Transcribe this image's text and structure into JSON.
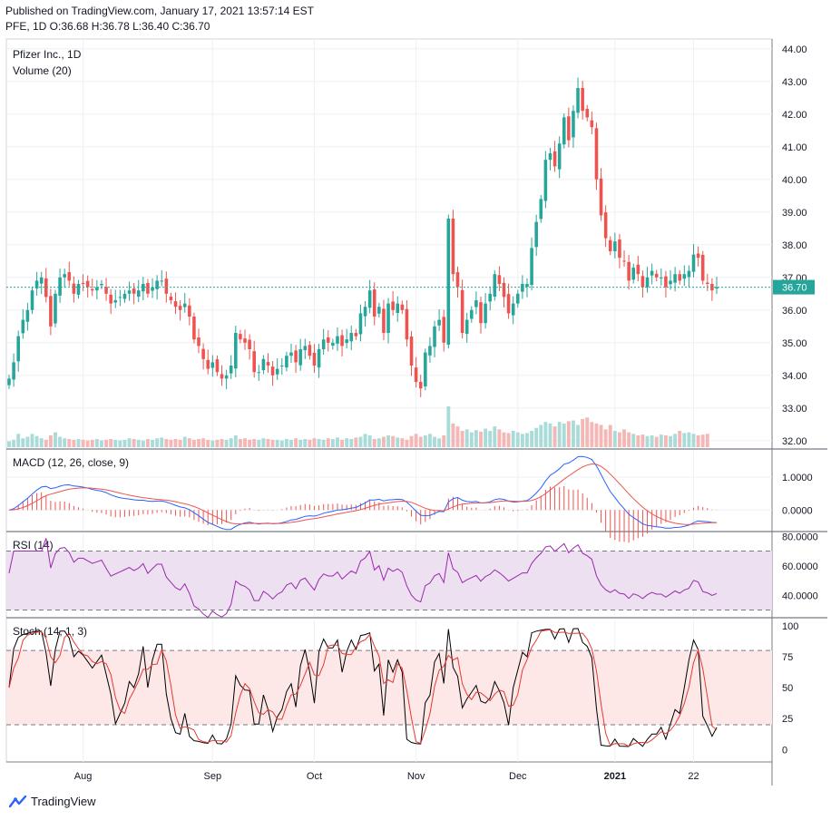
{
  "header": {
    "published": "Published on TradingView.com, January 17, 2021 13:57:14 EST",
    "ohlc": "PFE, 1D  O:36.68  H:36.78  L:36.40  C:36.70"
  },
  "footer": {
    "brand": "TradingView",
    "logo_icon": "tradingview-logo-icon"
  },
  "colors": {
    "up": "#26a69a",
    "down": "#ef5350",
    "vol_up": "#a9dcd8",
    "vol_down": "#f5b7b5",
    "macd_line": "#2962ff",
    "signal_line": "#ef5350",
    "rsi_line": "#9c27b0",
    "rsi_band": "#ede0f0",
    "stoch_k": "#000000",
    "stoch_d": "#e53935",
    "stoch_band": "#fde7e7",
    "last_price_bg": "#26a69a",
    "grid": "#eef0f3"
  },
  "chart_data": [
    {
      "type": "candlestick",
      "title": "Pfizer Inc., 1D",
      "subtitle": "Volume (20)",
      "last_price": 36.7,
      "last_price_label": "36.70",
      "ylim": [
        31.8,
        44.3
      ],
      "y_ticks": [
        "44.00",
        "43.00",
        "42.00",
        "41.00",
        "40.00",
        "39.00",
        "38.00",
        "37.00",
        "36.00",
        "35.00",
        "34.00",
        "33.00",
        "32.00"
      ],
      "x_ticks": [
        "Aug",
        "Sep",
        "Oct",
        "Nov",
        "Dec",
        "2021",
        "22"
      ],
      "closes": [
        33.9,
        34.4,
        35.2,
        35.7,
        36.0,
        36.6,
        36.9,
        37.0,
        36.4,
        35.5,
        36.5,
        37.0,
        37.1,
        36.9,
        36.5,
        36.8,
        36.8,
        36.7,
        36.6,
        36.7,
        36.8,
        36.5,
        36.2,
        36.3,
        36.4,
        36.5,
        36.6,
        36.5,
        36.6,
        36.8,
        36.5,
        36.7,
        36.9,
        36.9,
        36.5,
        36.3,
        36.1,
        36.0,
        36.2,
        35.8,
        35.1,
        34.9,
        34.5,
        34.2,
        34.4,
        34.1,
        33.9,
        34.0,
        34.3,
        35.3,
        35.1,
        35.0,
        34.8,
        34.1,
        34.1,
        34.5,
        34.3,
        34.0,
        34.2,
        34.3,
        34.6,
        34.7,
        34.4,
        34.8,
        34.9,
        34.6,
        34.3,
        34.8,
        35.1,
        35.0,
        35.0,
        35.2,
        34.9,
        35.1,
        35.3,
        35.2,
        35.9,
        36.1,
        36.6,
        35.8,
        36.1,
        35.3,
        36.2,
        36.0,
        36.2,
        36.0,
        35.1,
        34.3,
        33.8,
        33.6,
        34.7,
        34.9,
        35.5,
        35.7,
        35.0,
        38.8,
        37.1,
        36.7,
        35.3,
        35.7,
        36.0,
        36.3,
        35.6,
        36.2,
        36.5,
        37.1,
        36.8,
        36.4,
        35.9,
        36.2,
        36.5,
        36.8,
        36.8,
        37.9,
        38.7,
        39.4,
        40.6,
        40.8,
        40.4,
        41.1,
        41.9,
        41.2,
        42.1,
        42.8,
        42.1,
        41.9,
        41.6,
        40.0,
        38.9,
        38.2,
        37.8,
        38.1,
        37.6,
        37.5,
        36.9,
        37.3,
        37.1,
        36.7,
        37.0,
        37.2,
        37.0,
        37.0,
        36.7,
        36.9,
        37.1,
        36.9,
        37.1,
        37.2,
        37.7,
        37.6,
        36.9,
        36.8,
        36.6,
        36.7
      ],
      "volumes": [
        8,
        10,
        18,
        12,
        14,
        18,
        15,
        12,
        10,
        16,
        20,
        14,
        12,
        11,
        10,
        11,
        10,
        9,
        10,
        11,
        9,
        10,
        11,
        10,
        9,
        10,
        12,
        11,
        10,
        9,
        11,
        10,
        12,
        13,
        11,
        10,
        11,
        10,
        14,
        12,
        10,
        11,
        12,
        10,
        9,
        10,
        11,
        10,
        12,
        16,
        11,
        12,
        10,
        11,
        10,
        12,
        11,
        10,
        10,
        9,
        11,
        10,
        12,
        10,
        11,
        10,
        12,
        11,
        10,
        12,
        11,
        13,
        10,
        12,
        11,
        13,
        14,
        18,
        16,
        11,
        12,
        14,
        16,
        15,
        13,
        12,
        10,
        15,
        18,
        14,
        16,
        18,
        14,
        12,
        16,
        55,
        32,
        28,
        22,
        24,
        20,
        23,
        21,
        25,
        22,
        28,
        24,
        20,
        19,
        22,
        20,
        18,
        19,
        22,
        26,
        30,
        34,
        32,
        28,
        34,
        32,
        35,
        36,
        30,
        38,
        40,
        34,
        32,
        30,
        24,
        30,
        22,
        20,
        24,
        20,
        18,
        16,
        17,
        15,
        16,
        14,
        17,
        16,
        15,
        18,
        22,
        19,
        20,
        18,
        16,
        17,
        18
      ]
    },
    {
      "type": "line",
      "title": "MACD (12, 26, close, 9)",
      "ylim": [
        -0.6,
        1.8
      ],
      "y_ticks": [
        "1.0000",
        "0.0000"
      ],
      "series": [
        {
          "values": []
        },
        {
          "values": []
        }
      ]
    },
    {
      "type": "line",
      "title": "RSI (14)",
      "ylim": [
        26,
        82
      ],
      "y_ticks": [
        "80.0000",
        "60.0000",
        "40.0000"
      ],
      "bands": [
        70,
        30
      ],
      "series": [
        {
          "values": []
        }
      ]
    },
    {
      "type": "line",
      "title": "Stoch (14, 1, 3)",
      "ylim": [
        -10,
        105
      ],
      "y_ticks": [
        "100",
        "75",
        "50",
        "25",
        "0"
      ],
      "bands": [
        80,
        20
      ],
      "series": [
        {
          "values": []
        },
        {
          "values": []
        }
      ]
    }
  ]
}
